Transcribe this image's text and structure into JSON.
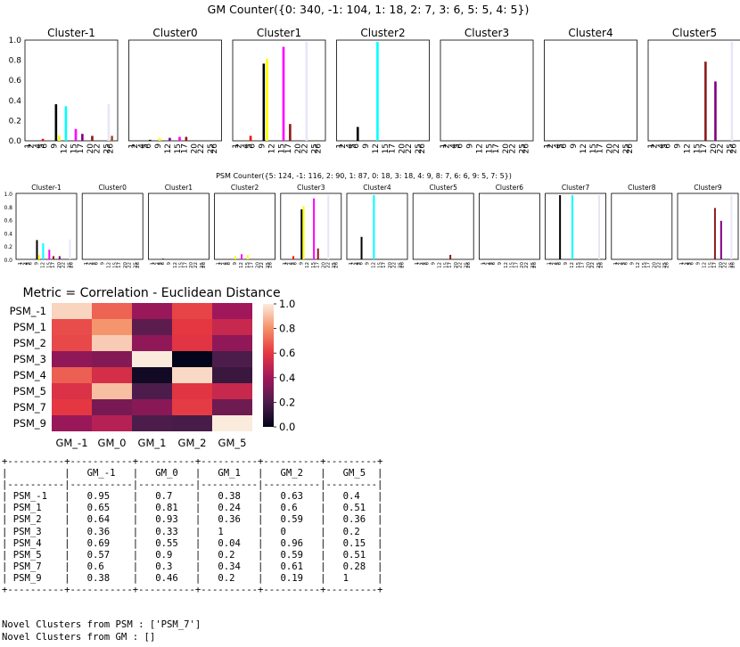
{
  "gm_title": "GM Counter({0: 340, -1: 104, 1: 18, 2: 7, 3: 6, 5: 5, 4: 5})",
  "psm_title": "PSM Counter({5: 124, -1: 116, 2: 90, 1: 87, 0: 18, 3: 18, 4: 9, 8: 7, 6: 6, 9: 5, 7: 5})",
  "heatmap_title": "Metric = Correlation - Euclidean Distance",
  "novel_psm": "Novel Clusters from PSM : ['PSM_7']",
  "novel_gm": "Novel Clusters from GM : []",
  "colors": {
    "c1": "#000000",
    "c4": "#8b0000",
    "c5": "#e60000",
    "c6": "#ff0000",
    "c9": "#000000",
    "c10": "#ffff00",
    "c11": "#00ffff",
    "c12": "#00ffff",
    "c15": "#ff00ff",
    "c17": "#8b1a1a",
    "c20": "#800080",
    "c22": "#c0c0c0",
    "c25": "#e6e6fa",
    "c26": "#a0522d"
  },
  "chart_data": [
    {
      "type": "bar",
      "group": "GM Counter",
      "title": "GM Counter({0: 340, -1: 104, 1: 18, 2: 7, 3: 6, 5: 5, 4: 5})",
      "categories": [
        "1",
        "2",
        "4",
        "5",
        "6",
        "9",
        "12",
        "15",
        "17",
        "20",
        "22",
        "25",
        "26"
      ],
      "ylim": [
        0,
        1.0
      ],
      "yticks": [
        "0.0",
        "0.2",
        "0.4",
        "0.6",
        "0.8",
        "1.0"
      ],
      "panels": [
        {
          "title": "Cluster-1",
          "bars": [
            {
              "cat": "5",
              "value": 0.02,
              "color": "#ff0000"
            },
            {
              "cat": "9",
              "value": 0.37,
              "color": "#000000"
            },
            {
              "cat": "10",
              "value": 0.05,
              "color": "#ffff00"
            },
            {
              "cat": "12",
              "value": 0.35,
              "color": "#00ffff"
            },
            {
              "cat": "15",
              "value": 0.12,
              "color": "#ff00ff"
            },
            {
              "cat": "17",
              "value": 0.07,
              "color": "#800080"
            },
            {
              "cat": "20",
              "value": 0.05,
              "color": "#8b1a1a"
            },
            {
              "cat": "25",
              "value": 0.37,
              "color": "#e6e6fa"
            },
            {
              "cat": "26",
              "value": 0.05,
              "color": "#a0522d"
            }
          ]
        },
        {
          "title": "Cluster0",
          "bars": [
            {
              "cat": "6",
              "value": 0.01,
              "color": "#000000"
            },
            {
              "cat": "9",
              "value": 0.03,
              "color": "#ffff00"
            },
            {
              "cat": "12",
              "value": 0.03,
              "color": "#800080"
            },
            {
              "cat": "15",
              "value": 0.04,
              "color": "#ff00ff"
            },
            {
              "cat": "17",
              "value": 0.04,
              "color": "#8b1a1a"
            }
          ]
        },
        {
          "title": "Cluster1",
          "bars": [
            {
              "cat": "5",
              "value": 0.05,
              "color": "#ff0000"
            },
            {
              "cat": "9",
              "value": 0.78,
              "color": "#000000"
            },
            {
              "cat": "10",
              "value": 0.83,
              "color": "#ffff00"
            },
            {
              "cat": "15",
              "value": 0.95,
              "color": "#ff00ff"
            },
            {
              "cat": "17",
              "value": 0.17,
              "color": "#8b1a1a"
            },
            {
              "cat": "22",
              "value": 1.0,
              "color": "#e6e6fa"
            }
          ]
        },
        {
          "title": "Cluster2",
          "bars": [
            {
              "cat": "6",
              "value": 0.14,
              "color": "#000000"
            },
            {
              "cat": "12",
              "value": 1.0,
              "color": "#00ffff"
            }
          ]
        },
        {
          "title": "Cluster3",
          "bars": []
        },
        {
          "title": "Cluster4",
          "bars": []
        },
        {
          "title": "Cluster5",
          "bars": [
            {
              "cat": "17",
              "value": 0.8,
              "color": "#8b1a1a"
            },
            {
              "cat": "20",
              "value": 0.6,
              "color": "#800080"
            },
            {
              "cat": "25",
              "value": 1.0,
              "color": "#e6e6fa"
            }
          ]
        }
      ]
    },
    {
      "type": "bar",
      "group": "PSM Counter",
      "title": "PSM Counter({5: 124, -1: 116, 2: 90, 1: 87, 0: 18, 3: 18, 4: 9, 8: 7, 6: 6, 9: 5, 7: 5})",
      "categories": [
        "1",
        "2",
        "4",
        "5",
        "6",
        "9",
        "12",
        "15",
        "17",
        "20",
        "22",
        "25",
        "26"
      ],
      "ylim": [
        0,
        1.0
      ],
      "yticks": [
        "0.0",
        "0.2",
        "0.4",
        "0.6",
        "0.8",
        "1.0"
      ],
      "panels": [
        {
          "title": "Cluster-1",
          "bars": [
            {
              "cat": "9",
              "value": 0.3,
              "color": "#000000"
            },
            {
              "cat": "10",
              "value": 0.07,
              "color": "#ffff00"
            },
            {
              "cat": "12",
              "value": 0.25,
              "color": "#00ffff"
            },
            {
              "cat": "15",
              "value": 0.15,
              "color": "#ff00ff"
            },
            {
              "cat": "17",
              "value": 0.05,
              "color": "#8b1a1a"
            },
            {
              "cat": "20",
              "value": 0.05,
              "color": "#800080"
            },
            {
              "cat": "25",
              "value": 0.31,
              "color": "#e6e6fa"
            }
          ]
        },
        {
          "title": "Cluster0",
          "bars": []
        },
        {
          "title": "Cluster1",
          "bars": [
            {
              "cat": "6",
              "value": 0.01,
              "color": "#000000"
            }
          ]
        },
        {
          "title": "Cluster2",
          "bars": [
            {
              "cat": "9",
              "value": 0.05,
              "color": "#ffff00"
            },
            {
              "cat": "12",
              "value": 0.08,
              "color": "#ff00ff"
            },
            {
              "cat": "15",
              "value": 0.07,
              "color": "#ffff00"
            }
          ]
        },
        {
          "title": "Cluster3",
          "bars": [
            {
              "cat": "5",
              "value": 0.05,
              "color": "#ff0000"
            },
            {
              "cat": "9",
              "value": 0.78,
              "color": "#000000"
            },
            {
              "cat": "10",
              "value": 0.83,
              "color": "#ffff00"
            },
            {
              "cat": "15",
              "value": 0.95,
              "color": "#ff00ff"
            },
            {
              "cat": "17",
              "value": 0.17,
              "color": "#8b1a1a"
            },
            {
              "cat": "22",
              "value": 1.0,
              "color": "#e6e6fa"
            }
          ]
        },
        {
          "title": "Cluster4",
          "bars": [
            {
              "cat": "6",
              "value": 0.35,
              "color": "#000000"
            },
            {
              "cat": "12",
              "value": 1.0,
              "color": "#00ffff"
            }
          ]
        },
        {
          "title": "Cluster5",
          "bars": [
            {
              "cat": "17",
              "value": 0.07,
              "color": "#8b1a1a"
            }
          ]
        },
        {
          "title": "Cluster6",
          "bars": []
        },
        {
          "title": "Cluster7",
          "bars": [
            {
              "cat": "6",
              "value": 1.0,
              "color": "#000000"
            },
            {
              "cat": "12",
              "value": 1.0,
              "color": "#00ffff"
            },
            {
              "cat": "25",
              "value": 1.0,
              "color": "#e6e6fa"
            }
          ]
        },
        {
          "title": "Cluster8",
          "bars": []
        },
        {
          "title": "Cluster9",
          "bars": [
            {
              "cat": "17",
              "value": 0.8,
              "color": "#8b1a1a"
            },
            {
              "cat": "20",
              "value": 0.6,
              "color": "#800080"
            },
            {
              "cat": "25",
              "value": 1.0,
              "color": "#e6e6fa"
            }
          ]
        }
      ]
    },
    {
      "type": "heatmap",
      "title": "Metric = Correlation - Euclidean Distance",
      "rows": [
        "PSM_-1",
        "PSM_1",
        "PSM_2",
        "PSM_3",
        "PSM_4",
        "PSM_5",
        "PSM_7",
        "PSM_9"
      ],
      "cols": [
        "GM_-1",
        "GM_0",
        "GM_1",
        "GM_2",
        "GM_5"
      ],
      "values": [
        [
          0.95,
          0.7,
          0.38,
          0.63,
          0.4
        ],
        [
          0.65,
          0.81,
          0.24,
          0.6,
          0.51
        ],
        [
          0.64,
          0.93,
          0.36,
          0.59,
          0.36
        ],
        [
          0.36,
          0.33,
          1,
          0,
          0.2
        ],
        [
          0.69,
          0.55,
          0.04,
          0.96,
          0.15
        ],
        [
          0.57,
          0.9,
          0.2,
          0.59,
          0.51
        ],
        [
          0.6,
          0.3,
          0.34,
          0.61,
          0.28
        ],
        [
          0.38,
          0.46,
          0.2,
          0.19,
          1
        ]
      ],
      "colorbar_ticks": [
        "0.0",
        "0.2",
        "0.4",
        "0.6",
        "0.8",
        "1.0"
      ],
      "vrange": [
        0,
        1
      ]
    },
    {
      "type": "table",
      "headers": [
        "",
        "GM_-1",
        "GM_0",
        "GM_1",
        "GM_2",
        "GM_5"
      ],
      "rows": [
        [
          "PSM_-1",
          "0.95",
          "0.7",
          "0.38",
          "0.63",
          "0.4"
        ],
        [
          "PSM_1",
          "0.65",
          "0.81",
          "0.24",
          "0.6",
          "0.51"
        ],
        [
          "PSM_2",
          "0.64",
          "0.93",
          "0.36",
          "0.59",
          "0.36"
        ],
        [
          "PSM_3",
          "0.36",
          "0.33",
          "1",
          "0",
          "0.2"
        ],
        [
          "PSM_4",
          "0.69",
          "0.55",
          "0.04",
          "0.96",
          "0.15"
        ],
        [
          "PSM_5",
          "0.57",
          "0.9",
          "0.2",
          "0.59",
          "0.51"
        ],
        [
          "PSM_7",
          "0.6",
          "0.3",
          "0.34",
          "0.61",
          "0.28"
        ],
        [
          "PSM_9",
          "0.38",
          "0.46",
          "0.2",
          "0.19",
          "1"
        ]
      ]
    }
  ]
}
